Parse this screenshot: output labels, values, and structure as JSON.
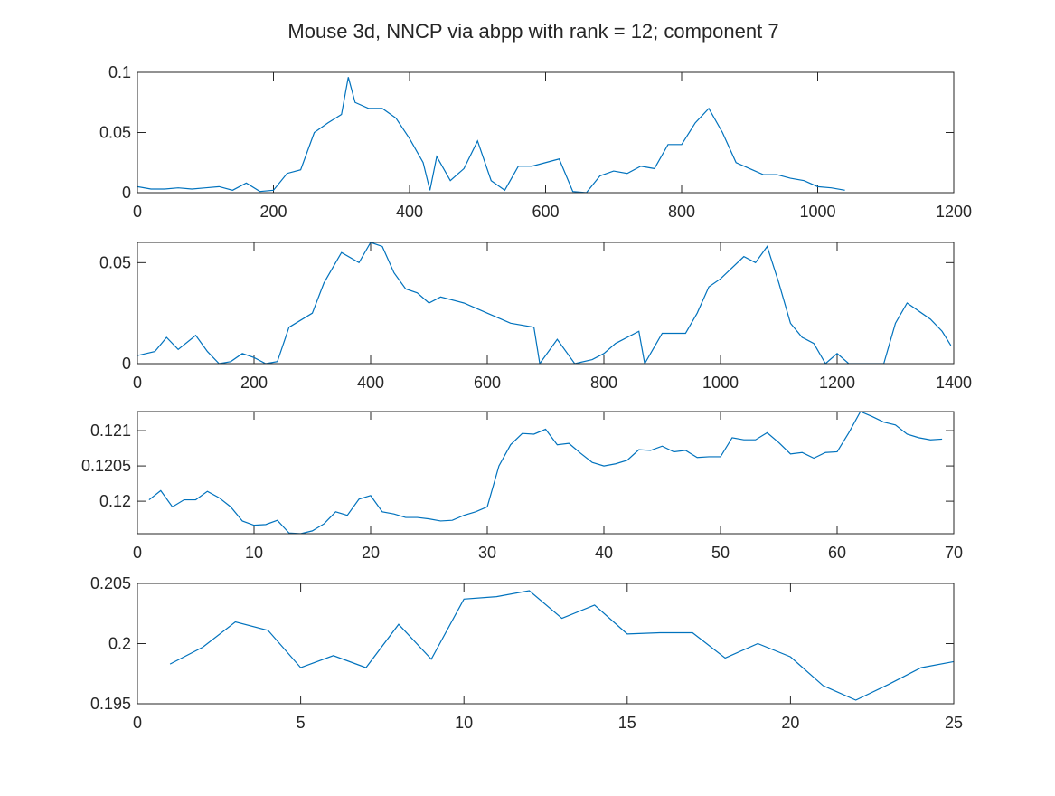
{
  "title": "Mouse 3d, NNCP via abpp with rank = 12; component 7",
  "chart_data": [
    {
      "type": "line",
      "xlim": [
        0,
        1200
      ],
      "xticks": [
        0,
        200,
        400,
        600,
        800,
        1000,
        1200
      ],
      "ylim": [
        0,
        0.1
      ],
      "yticks": [
        0,
        0.05,
        0.1
      ],
      "x": [
        0,
        20,
        40,
        60,
        80,
        100,
        120,
        140,
        160,
        180,
        200,
        220,
        240,
        260,
        280,
        300,
        310,
        320,
        340,
        360,
        380,
        400,
        420,
        430,
        440,
        460,
        480,
        500,
        520,
        540,
        560,
        580,
        600,
        620,
        640,
        660,
        680,
        700,
        720,
        740,
        760,
        780,
        800,
        820,
        840,
        860,
        880,
        900,
        920,
        940,
        960,
        980,
        1000,
        1020,
        1040
      ],
      "series": [
        {
          "color": "#0072bd",
          "values": [
            0.005,
            0.003,
            0.003,
            0.004,
            0.003,
            0.004,
            0.005,
            0.002,
            0.008,
            0.001,
            0.002,
            0.016,
            0.019,
            0.05,
            0.058,
            0.065,
            0.096,
            0.075,
            0.07,
            0.07,
            0.062,
            0.045,
            0.025,
            0.002,
            0.03,
            0.01,
            0.02,
            0.043,
            0.01,
            0.002,
            0.022,
            0.022,
            0.025,
            0.028,
            0.001,
            0.0,
            0.014,
            0.018,
            0.016,
            0.022,
            0.02,
            0.04,
            0.04,
            0.058,
            0.07,
            0.05,
            0.025,
            0.02,
            0.015,
            0.015,
            0.012,
            0.01,
            0.005,
            0.004,
            0.002
          ]
        }
      ]
    },
    {
      "type": "line",
      "xlim": [
        0,
        1400
      ],
      "xticks": [
        0,
        200,
        400,
        600,
        800,
        1000,
        1200,
        1400
      ],
      "ylim": [
        0,
        0.06
      ],
      "yticks": [
        0,
        0.05
      ],
      "x": [
        0,
        30,
        50,
        70,
        100,
        120,
        140,
        160,
        180,
        200,
        220,
        240,
        260,
        300,
        320,
        340,
        350,
        380,
        400,
        420,
        440,
        460,
        480,
        500,
        520,
        560,
        600,
        640,
        680,
        690,
        720,
        750,
        780,
        800,
        820,
        860,
        870,
        900,
        940,
        960,
        980,
        1000,
        1040,
        1060,
        1080,
        1100,
        1120,
        1140,
        1160,
        1180,
        1200,
        1220,
        1260,
        1280,
        1300,
        1320,
        1340,
        1360,
        1380,
        1395
      ],
      "series": [
        {
          "color": "#0072bd",
          "values": [
            0.004,
            0.006,
            0.013,
            0.007,
            0.014,
            0.006,
            0.0,
            0.001,
            0.005,
            0.003,
            0.0,
            0.001,
            0.018,
            0.025,
            0.04,
            0.05,
            0.055,
            0.05,
            0.06,
            0.058,
            0.045,
            0.037,
            0.035,
            0.03,
            0.033,
            0.03,
            0.025,
            0.02,
            0.018,
            0.0,
            0.012,
            0.0,
            0.002,
            0.005,
            0.01,
            0.016,
            0.0,
            0.015,
            0.015,
            0.025,
            0.038,
            0.042,
            0.053,
            0.05,
            0.058,
            0.04,
            0.02,
            0.013,
            0.01,
            0.0,
            0.005,
            0.0,
            0.0,
            0.0,
            0.02,
            0.03,
            0.026,
            0.022,
            0.016,
            0.009
          ]
        }
      ]
    },
    {
      "type": "line",
      "xlim": [
        0,
        70
      ],
      "xticks": [
        0,
        10,
        20,
        30,
        40,
        50,
        60,
        70
      ],
      "ylim": [
        0.11954,
        0.12127
      ],
      "yticks": [
        0.12,
        0.1205,
        0.121
      ],
      "x": [
        1,
        2,
        3,
        4,
        5,
        6,
        7,
        8,
        9,
        10,
        11,
        12,
        13,
        14,
        15,
        16,
        17,
        18,
        19,
        20,
        21,
        22,
        23,
        24,
        25,
        26,
        27,
        28,
        29,
        30,
        31,
        32,
        33,
        34,
        35,
        36,
        37,
        38,
        39,
        40,
        41,
        42,
        43,
        44,
        45,
        46,
        47,
        48,
        49,
        50,
        51,
        52,
        53,
        54,
        55,
        56,
        57,
        58,
        59,
        60,
        61,
        62,
        63,
        64,
        65,
        66,
        67,
        68,
        69
      ],
      "series": [
        {
          "color": "#0072bd",
          "values": [
            0.12002,
            0.12015,
            0.11992,
            0.12002,
            0.12002,
            0.12014,
            0.12005,
            0.11992,
            0.11972,
            0.11966,
            0.11967,
            0.11973,
            0.11955,
            0.11954,
            0.11958,
            0.11968,
            0.11985,
            0.1198,
            0.12003,
            0.12008,
            0.11985,
            0.11982,
            0.11977,
            0.11977,
            0.11975,
            0.11972,
            0.11973,
            0.1198,
            0.11985,
            0.11992,
            0.1205,
            0.1208,
            0.12096,
            0.12095,
            0.12102,
            0.1208,
            0.12082,
            0.12068,
            0.12055,
            0.1205,
            0.12053,
            0.12058,
            0.12073,
            0.12072,
            0.12078,
            0.1207,
            0.12072,
            0.12062,
            0.12063,
            0.12063,
            0.1209,
            0.12087,
            0.12087,
            0.12097,
            0.12083,
            0.12067,
            0.12069,
            0.12061,
            0.12069,
            0.1207,
            0.12097,
            0.12127,
            0.1212,
            0.12112,
            0.12108,
            0.12095,
            0.1209,
            0.12087,
            0.12088
          ]
        }
      ]
    },
    {
      "type": "line",
      "xlim": [
        0,
        25
      ],
      "xticks": [
        0,
        5,
        10,
        15,
        20,
        25
      ],
      "ylim": [
        0.195,
        0.205
      ],
      "yticks": [
        0.195,
        0.2,
        0.205
      ],
      "x": [
        1,
        2,
        3,
        4,
        5,
        6,
        7,
        8,
        9,
        10,
        11,
        12,
        13,
        14,
        15,
        16,
        17,
        18,
        19,
        20,
        21,
        22,
        23,
        24,
        25
      ],
      "series": [
        {
          "color": "#0072bd",
          "values": [
            0.1983,
            0.1997,
            0.2018,
            0.2011,
            0.198,
            0.199,
            0.198,
            0.2016,
            0.1987,
            0.2037,
            0.2039,
            0.2044,
            0.2021,
            0.2032,
            0.2008,
            0.2009,
            0.2009,
            0.1988,
            0.2,
            0.1989,
            0.1965,
            0.1953,
            0.1966,
            0.198,
            0.1985
          ]
        }
      ]
    }
  ]
}
